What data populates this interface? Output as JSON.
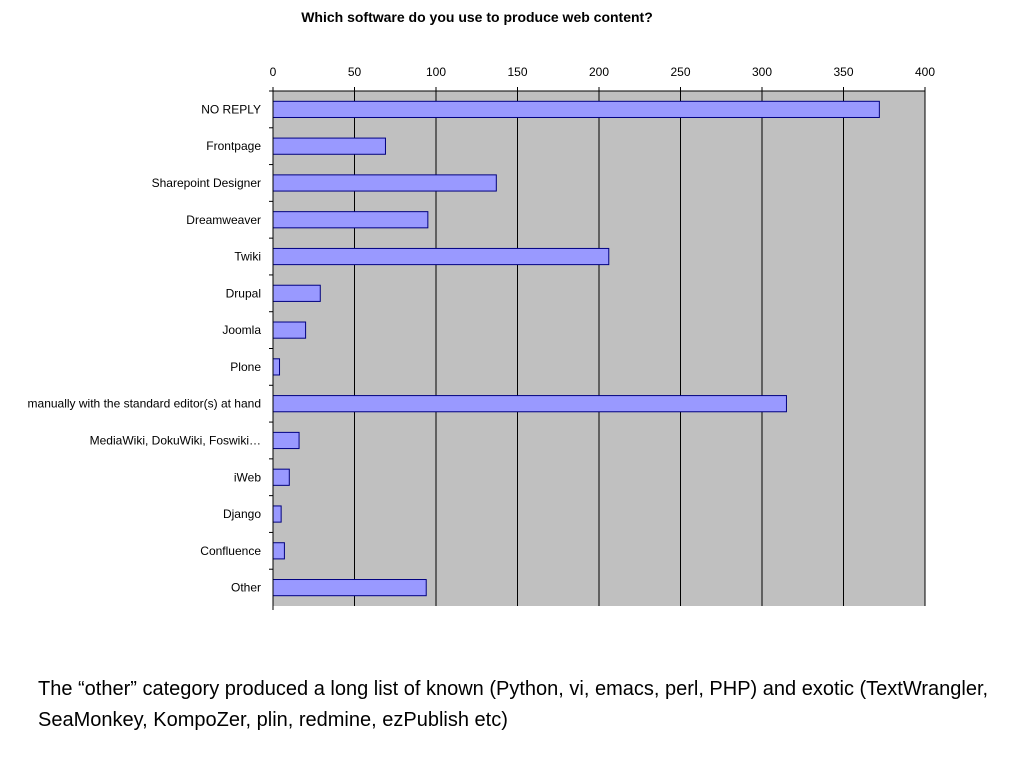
{
  "chart_data": {
    "type": "bar",
    "orientation": "horizontal",
    "title": "Which software do you use to produce web content?",
    "xlabel": "",
    "ylabel": "",
    "xlim": [
      0,
      400
    ],
    "ticks": [
      0,
      50,
      100,
      150,
      200,
      250,
      300,
      350,
      400
    ],
    "grid": true,
    "categories": [
      "NO REPLY",
      "Frontpage",
      "Sharepoint Designer",
      "Dreamweaver",
      "Twiki",
      "Drupal",
      "Joomla",
      "Plone",
      "manually with the standard editor(s) at hand",
      "MediaWiki, DokuWiki, Foswiki…",
      "iWeb",
      "Django",
      "Confluence",
      "Other"
    ],
    "values": [
      372,
      69,
      137,
      95,
      206,
      29,
      20,
      4,
      315,
      16,
      10,
      5,
      7,
      94
    ],
    "colors": {
      "plot_bg": "#c0c0c0",
      "bar_fill": "#9999ff",
      "bar_stroke": "#000080",
      "grid": "#000000"
    }
  },
  "caption": "The “other” category produced a long list of known (Python, vi, emacs, perl, PHP) and exotic (TextWrangler, SeaMonkey, KompoZer, plin, redmine, ezPublish etc)"
}
